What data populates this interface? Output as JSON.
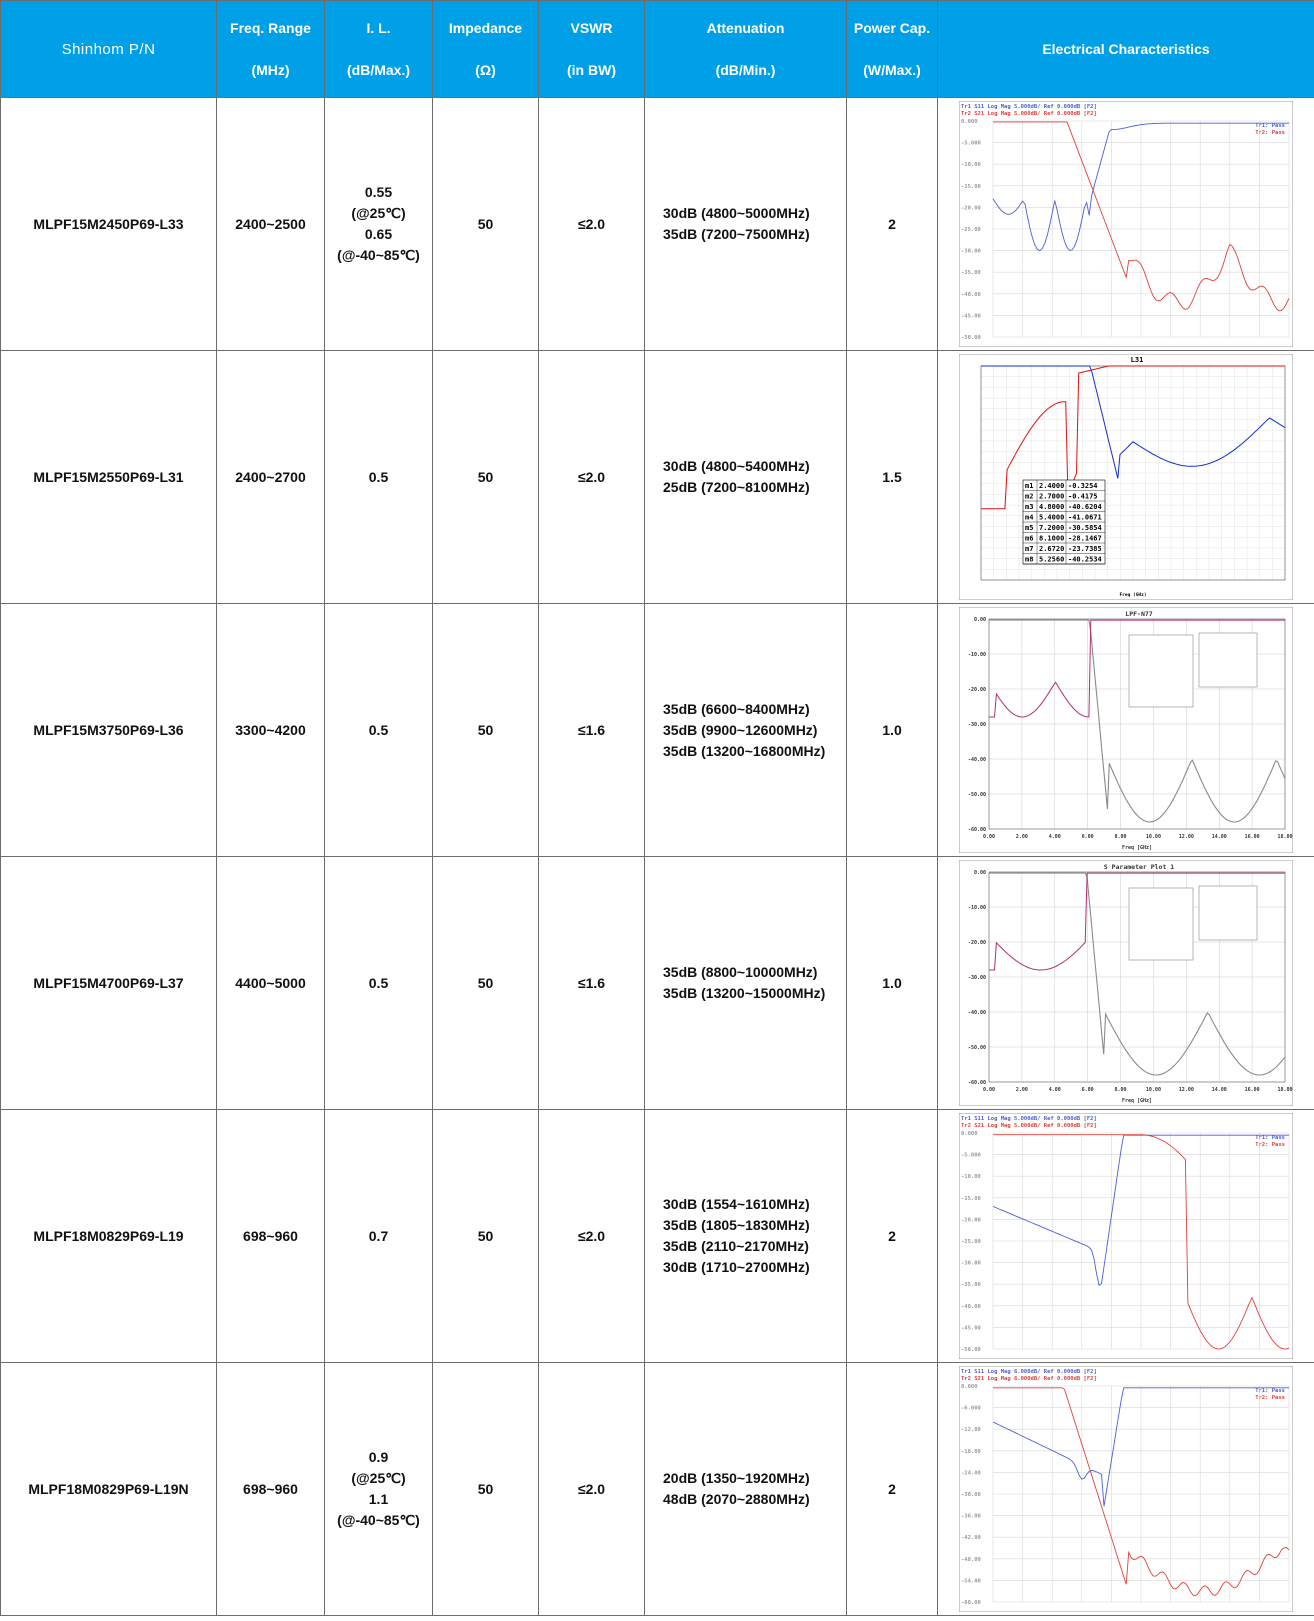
{
  "headers": [
    {
      "l1": "Shinhom P/N",
      "l2": ""
    },
    {
      "l1": "Freq. Range",
      "l2": "(MHz)"
    },
    {
      "l1": "I. L.",
      "l2": "(dB/Max.)"
    },
    {
      "l1": "Impedance",
      "l2": "(Ω)"
    },
    {
      "l1": "VSWR",
      "l2": "(in BW)"
    },
    {
      "l1": "Attenuation",
      "l2": "(dB/Min.)"
    },
    {
      "l1": "Power Cap.",
      "l2": "(W/Max.)"
    },
    {
      "l1": "Electrical Characteristics",
      "l2": ""
    }
  ],
  "rows": [
    {
      "pn": "MLPF15M2450P69-L33",
      "freq": "2400~2500",
      "il": [
        "0.55",
        "(@25℃)",
        "0.65",
        "(@-40~85℃)"
      ],
      "imp": "50",
      "vswr": "≤2.0",
      "att": [
        "30dB (4800~5000MHz)",
        "35dB (7200~7500MHz)"
      ],
      "pwr": "2",
      "chart": {
        "style": "vna",
        "ylabels": [
          "0.000",
          "-5.000",
          "-10.00",
          "-15.00",
          "-20.00",
          "-25.00",
          "-30.00",
          "-35.00",
          "-40.00",
          "-45.00",
          "-50.00"
        ],
        "header1": "Tr1 S11 Log Mag 5.000dB/ Ref 0.000dB [F2]",
        "header2": "Tr2 S21 Log Mag 5.000dB/ Ref 0.000dB [F2]",
        "pass1": "Tr1: Pass",
        "pass2": "Tr2: Pass"
      }
    },
    {
      "pn": "MLPF15M2550P69-L31",
      "freq": "2400~2700",
      "il": [
        "0.5"
      ],
      "imp": "50",
      "vswr": "≤2.0",
      "att": [
        "30dB (4800~5400MHz)",
        "25dB (7200~8100MHz)"
      ],
      "pwr": "1.5",
      "chart": {
        "style": "ads",
        "title": "L31",
        "xlabel": "Freq (GHz)",
        "markers": [
          [
            "m1",
            "2.4000",
            "-0.3254"
          ],
          [
            "m2",
            "2.7000",
            "-0.4175"
          ],
          [
            "m3",
            "4.8000",
            "-40.6204"
          ],
          [
            "m4",
            "5.4000",
            "-41.0671"
          ],
          [
            "m5",
            "7.2000",
            "-30.5854"
          ],
          [
            "m6",
            "8.1000",
            "-28.1467"
          ],
          [
            "m7",
            "2.6720",
            "-23.7385"
          ],
          [
            "m8",
            "5.2560",
            "-40.2534"
          ]
        ]
      }
    },
    {
      "pn": "MLPF15M3750P69-L36",
      "freq": "3300~4200",
      "il": [
        "0.5"
      ],
      "imp": "50",
      "vswr": "≤1.6",
      "att": [
        "35dB (6600~8400MHz)",
        "35dB (9900~12600MHz)",
        "35dB (13200~16800MHz)"
      ],
      "pwr": "1.0",
      "chart": {
        "style": "hfss",
        "title": "LPF-N77",
        "xlabel": "Freq [GHz]",
        "xticks": [
          "0.00",
          "2.00",
          "4.00",
          "6.00",
          "8.00",
          "10.00",
          "12.00",
          "14.00",
          "16.00",
          "18.00"
        ],
        "yticks": [
          "0.00",
          "-10.00",
          "-20.00",
          "-30.00",
          "-40.00",
          "-50.00",
          "-60.00"
        ]
      }
    },
    {
      "pn": "MLPF15M4700P69-L37",
      "freq": "4400~5000",
      "il": [
        "0.5"
      ],
      "imp": "50",
      "vswr": "≤1.6",
      "att": [
        "35dB (8800~10000MHz)",
        "35dB (13200~15000MHz)"
      ],
      "pwr": "1.0",
      "chart": {
        "style": "hfss",
        "title": "S Parameter Plot 1",
        "xlabel": "Freq [GHz]",
        "xticks": [
          "0.00",
          "2.00",
          "4.00",
          "6.00",
          "8.00",
          "10.00",
          "12.00",
          "14.00",
          "16.00",
          "18.00"
        ],
        "yticks": [
          "0.00",
          "-10.00",
          "-20.00",
          "-30.00",
          "-40.00",
          "-50.00",
          "-60.00"
        ]
      }
    },
    {
      "pn": "MLPF18M0829P69-L19",
      "freq": "698~960",
      "il": [
        "0.7"
      ],
      "imp": "50",
      "vswr": "≤2.0",
      "att": [
        "30dB (1554~1610MHz)",
        "35dB (1805~1830MHz)",
        "35dB (2110~2170MHz)",
        "30dB (1710~2700MHz)"
      ],
      "pwr": "2",
      "chart": {
        "style": "vna",
        "ylabels": [
          "0.000",
          "-5.000",
          "-10.00",
          "-15.00",
          "-20.00",
          "-25.00",
          "-30.00",
          "-35.00",
          "-40.00",
          "-45.00",
          "-50.00"
        ],
        "header1": "Tr1 S11 Log Mag 5.000dB/ Ref 0.000dB [F2]",
        "header2": "Tr2 S21 Log Mag 5.000dB/ Ref 0.000dB [F2]",
        "pass1": "Tr1: Pass",
        "pass2": "Tr2: Pass"
      }
    },
    {
      "pn": "MLPF18M0829P69-L19N",
      "freq": "698~960",
      "il": [
        "0.9",
        "(@25℃)",
        "1.1",
        "(@-40~85℃)"
      ],
      "imp": "50",
      "vswr": "≤2.0",
      "att": [
        "20dB (1350~1920MHz)",
        "48dB (2070~2880MHz)"
      ],
      "pwr": "2",
      "chart": {
        "style": "vna",
        "ylabels": [
          "0.000",
          "-6.000",
          "-12.00",
          "-18.00",
          "-24.00",
          "-30.00",
          "-36.00",
          "-42.00",
          "-48.00",
          "-54.00",
          "-60.00"
        ],
        "header1": "Tr1 S11 Log Mag 6.000dB/ Ref 0.000dB [F2]",
        "header2": "Tr2 S21 Log Mag 6.000dB/ Ref 0.000dB [F2]",
        "pass1": "Tr1: Pass",
        "pass2": "Tr2: Pass"
      }
    }
  ],
  "colors": {
    "header_bg": "#00a0e9",
    "s11": "#4a5fd6",
    "s21": "#e0403a",
    "ads_s11": "#1030d0",
    "ads_s21": "#e01010",
    "hfss_curve": "#8a8a8a",
    "hfss_curve2": "#b03070"
  }
}
